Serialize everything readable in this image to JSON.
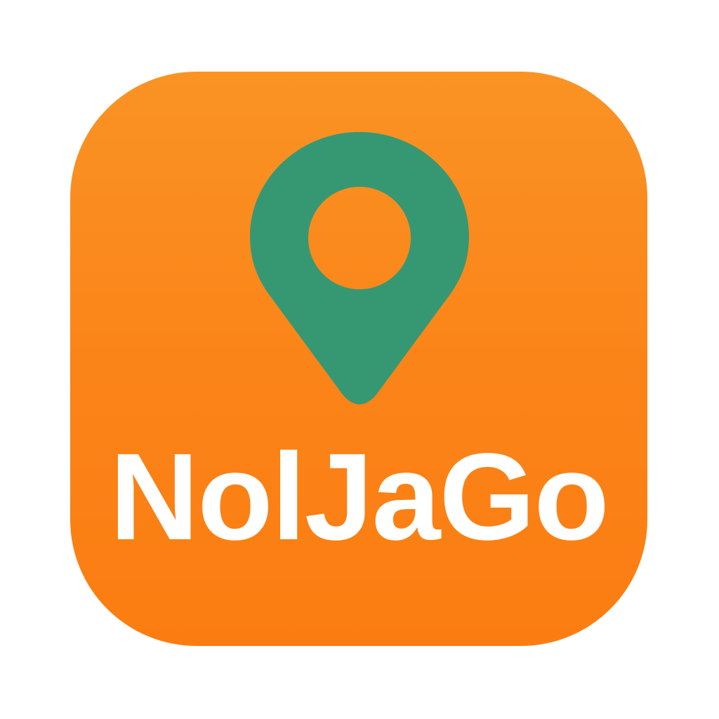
{
  "app": {
    "name": "NolJaGo",
    "icon": "location-pin-icon"
  },
  "colors": {
    "background_top": "#fa9324",
    "background_bottom": "#fb7d12",
    "pin": "#369873",
    "text": "#ffffff",
    "page": "#ffffff"
  }
}
